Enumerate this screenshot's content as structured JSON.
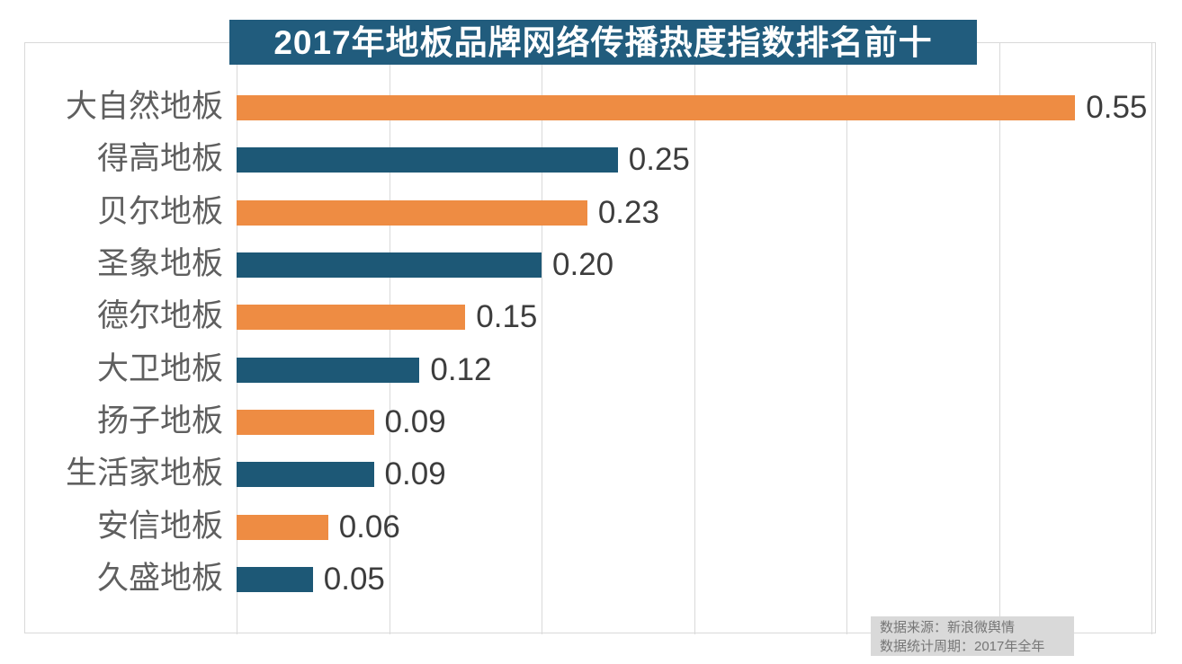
{
  "title": "2017年地板品牌网络传播热度指数排名前十",
  "source": {
    "line1": "数据来源：新浪微舆情",
    "line2": "数据统计周期：2017年全年"
  },
  "colors": {
    "title_bg": "#215C7D",
    "title_text": "#FFFFFF",
    "bar_orange": "#EE8C43",
    "bar_teal": "#1D5876",
    "gridline": "#D9D9D9",
    "frame_border": "#D9D9D9",
    "category_text": "#5F5F5F",
    "value_text": "#3D3D3D",
    "note_bg": "#D9D9D9",
    "note_text": "#767676",
    "background": "#FFFFFF"
  },
  "chart_data": {
    "type": "bar",
    "orientation": "horizontal",
    "title": "2017年地板品牌网络传播热度指数排名前十",
    "categories": [
      "大自然地板",
      "得高地板",
      "贝尔地板",
      "圣象地板",
      "德尔地板",
      "大卫地板",
      "扬子地板",
      "生活家地板",
      "安信地板",
      "久盛地板"
    ],
    "values": [
      0.55,
      0.25,
      0.23,
      0.2,
      0.15,
      0.12,
      0.09,
      0.09,
      0.06,
      0.05
    ],
    "value_labels": [
      "0.55",
      "0.25",
      "0.23",
      "0.20",
      "0.15",
      "0.12",
      "0.09",
      "0.09",
      "0.06",
      "0.05"
    ],
    "bar_palette_alternating": [
      "#EE8C43",
      "#1D5876"
    ],
    "xlim": [
      0,
      0.6
    ],
    "grid_step": 0.1,
    "grid": "vertical-light-gray",
    "legend": "none",
    "xlabel": "",
    "ylabel": "",
    "value_label_position": "outside-end",
    "source_note": [
      "数据来源：新浪微舆情",
      "数据统计周期：2017年全年"
    ]
  }
}
